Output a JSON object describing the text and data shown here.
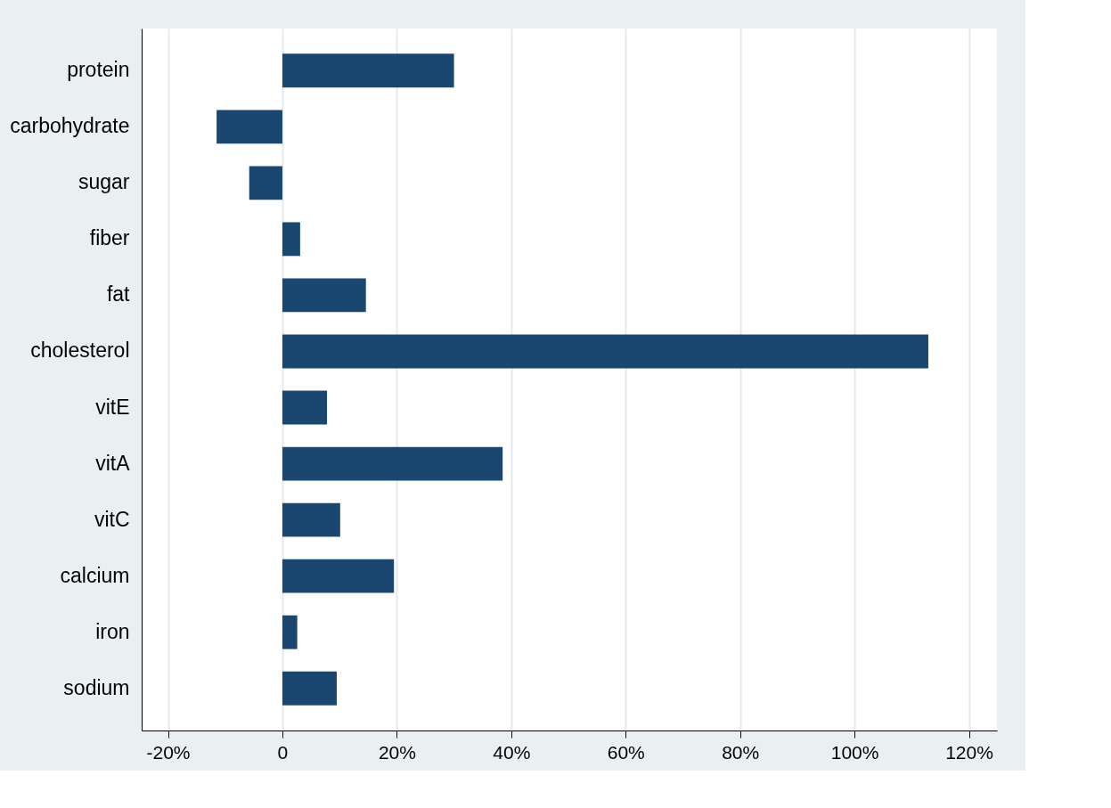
{
  "chart_data": {
    "type": "bar",
    "orientation": "horizontal",
    "categories": [
      "protein",
      "carbohydrate",
      "sugar",
      "fiber",
      "fat",
      "cholesterol",
      "vitE",
      "vitA",
      "vitC",
      "calcium",
      "iron",
      "sodium"
    ],
    "values": [
      30,
      -11.5,
      -5.8,
      3.1,
      14.6,
      112.9,
      7.8,
      38.5,
      10.1,
      19.5,
      2.6,
      9.5
    ],
    "color": "#1a476f",
    "xlim": [
      -24.6,
      124.9
    ],
    "xticks": [
      {
        "value": -20,
        "label": "-20%"
      },
      {
        "value": 0,
        "label": "0"
      },
      {
        "value": 20,
        "label": "20%"
      },
      {
        "value": 40,
        "label": "40%"
      },
      {
        "value": 60,
        "label": "60%"
      },
      {
        "value": 80,
        "label": "80%"
      },
      {
        "value": 100,
        "label": "100%"
      },
      {
        "value": 120,
        "label": "120%"
      }
    ],
    "grid": "x"
  }
}
